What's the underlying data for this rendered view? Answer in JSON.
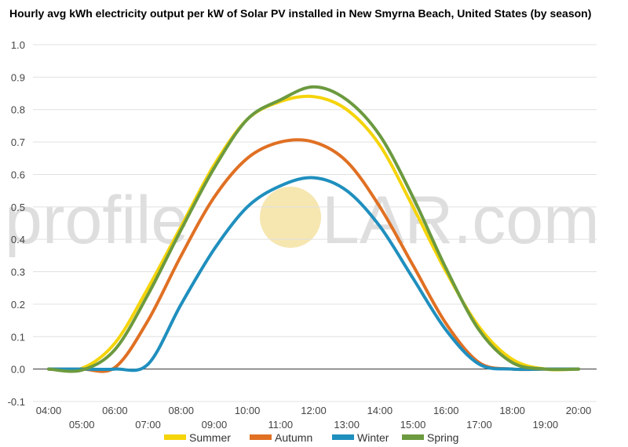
{
  "chart_data": {
    "type": "line",
    "title": "Hourly avg kWh electricity output per kW of Solar PV installed in New Smyrna Beach, United States (by season)",
    "xlabel": "",
    "ylabel": "",
    "ylim": [
      -0.1,
      1.0
    ],
    "yticks": [
      "-0.1",
      "0.0",
      "0.1",
      "0.2",
      "0.3",
      "0.4",
      "0.5",
      "0.6",
      "0.7",
      "0.8",
      "0.9",
      "1.0"
    ],
    "x": [
      "04:00",
      "05:00",
      "06:00",
      "07:00",
      "08:00",
      "09:00",
      "10:00",
      "11:00",
      "12:00",
      "13:00",
      "14:00",
      "15:00",
      "16:00",
      "17:00",
      "18:00",
      "19:00",
      "20:00"
    ],
    "grid": true,
    "legend": "bottom",
    "watermark": {
      "text_left": "profile",
      "text_right": "LAR.com",
      "sun_color": "#f6e6b0",
      "text_color": "#dedede"
    },
    "series": [
      {
        "name": "Summer",
        "color": "#f5d40a",
        "values": [
          0.0,
          0.002,
          0.08,
          0.25,
          0.44,
          0.63,
          0.77,
          0.825,
          0.84,
          0.8,
          0.69,
          0.5,
          0.3,
          0.13,
          0.03,
          0.0,
          0.0
        ]
      },
      {
        "name": "Autumn",
        "color": "#e07023",
        "values": [
          0.0,
          0.0,
          0.005,
          0.15,
          0.35,
          0.53,
          0.65,
          0.7,
          0.7,
          0.64,
          0.5,
          0.32,
          0.14,
          0.02,
          0.0,
          0.0,
          0.0
        ]
      },
      {
        "name": "Winter",
        "color": "#1f8fbe",
        "values": [
          0.0,
          0.0,
          0.0,
          0.015,
          0.2,
          0.37,
          0.5,
          0.565,
          0.59,
          0.55,
          0.44,
          0.28,
          0.12,
          0.015,
          0.0,
          0.0,
          0.0
        ]
      },
      {
        "name": "Spring",
        "color": "#6c9a3f",
        "values": [
          0.0,
          -0.003,
          0.06,
          0.23,
          0.43,
          0.62,
          0.77,
          0.83,
          0.87,
          0.83,
          0.72,
          0.53,
          0.31,
          0.12,
          0.02,
          0.0,
          0.0
        ]
      }
    ]
  }
}
